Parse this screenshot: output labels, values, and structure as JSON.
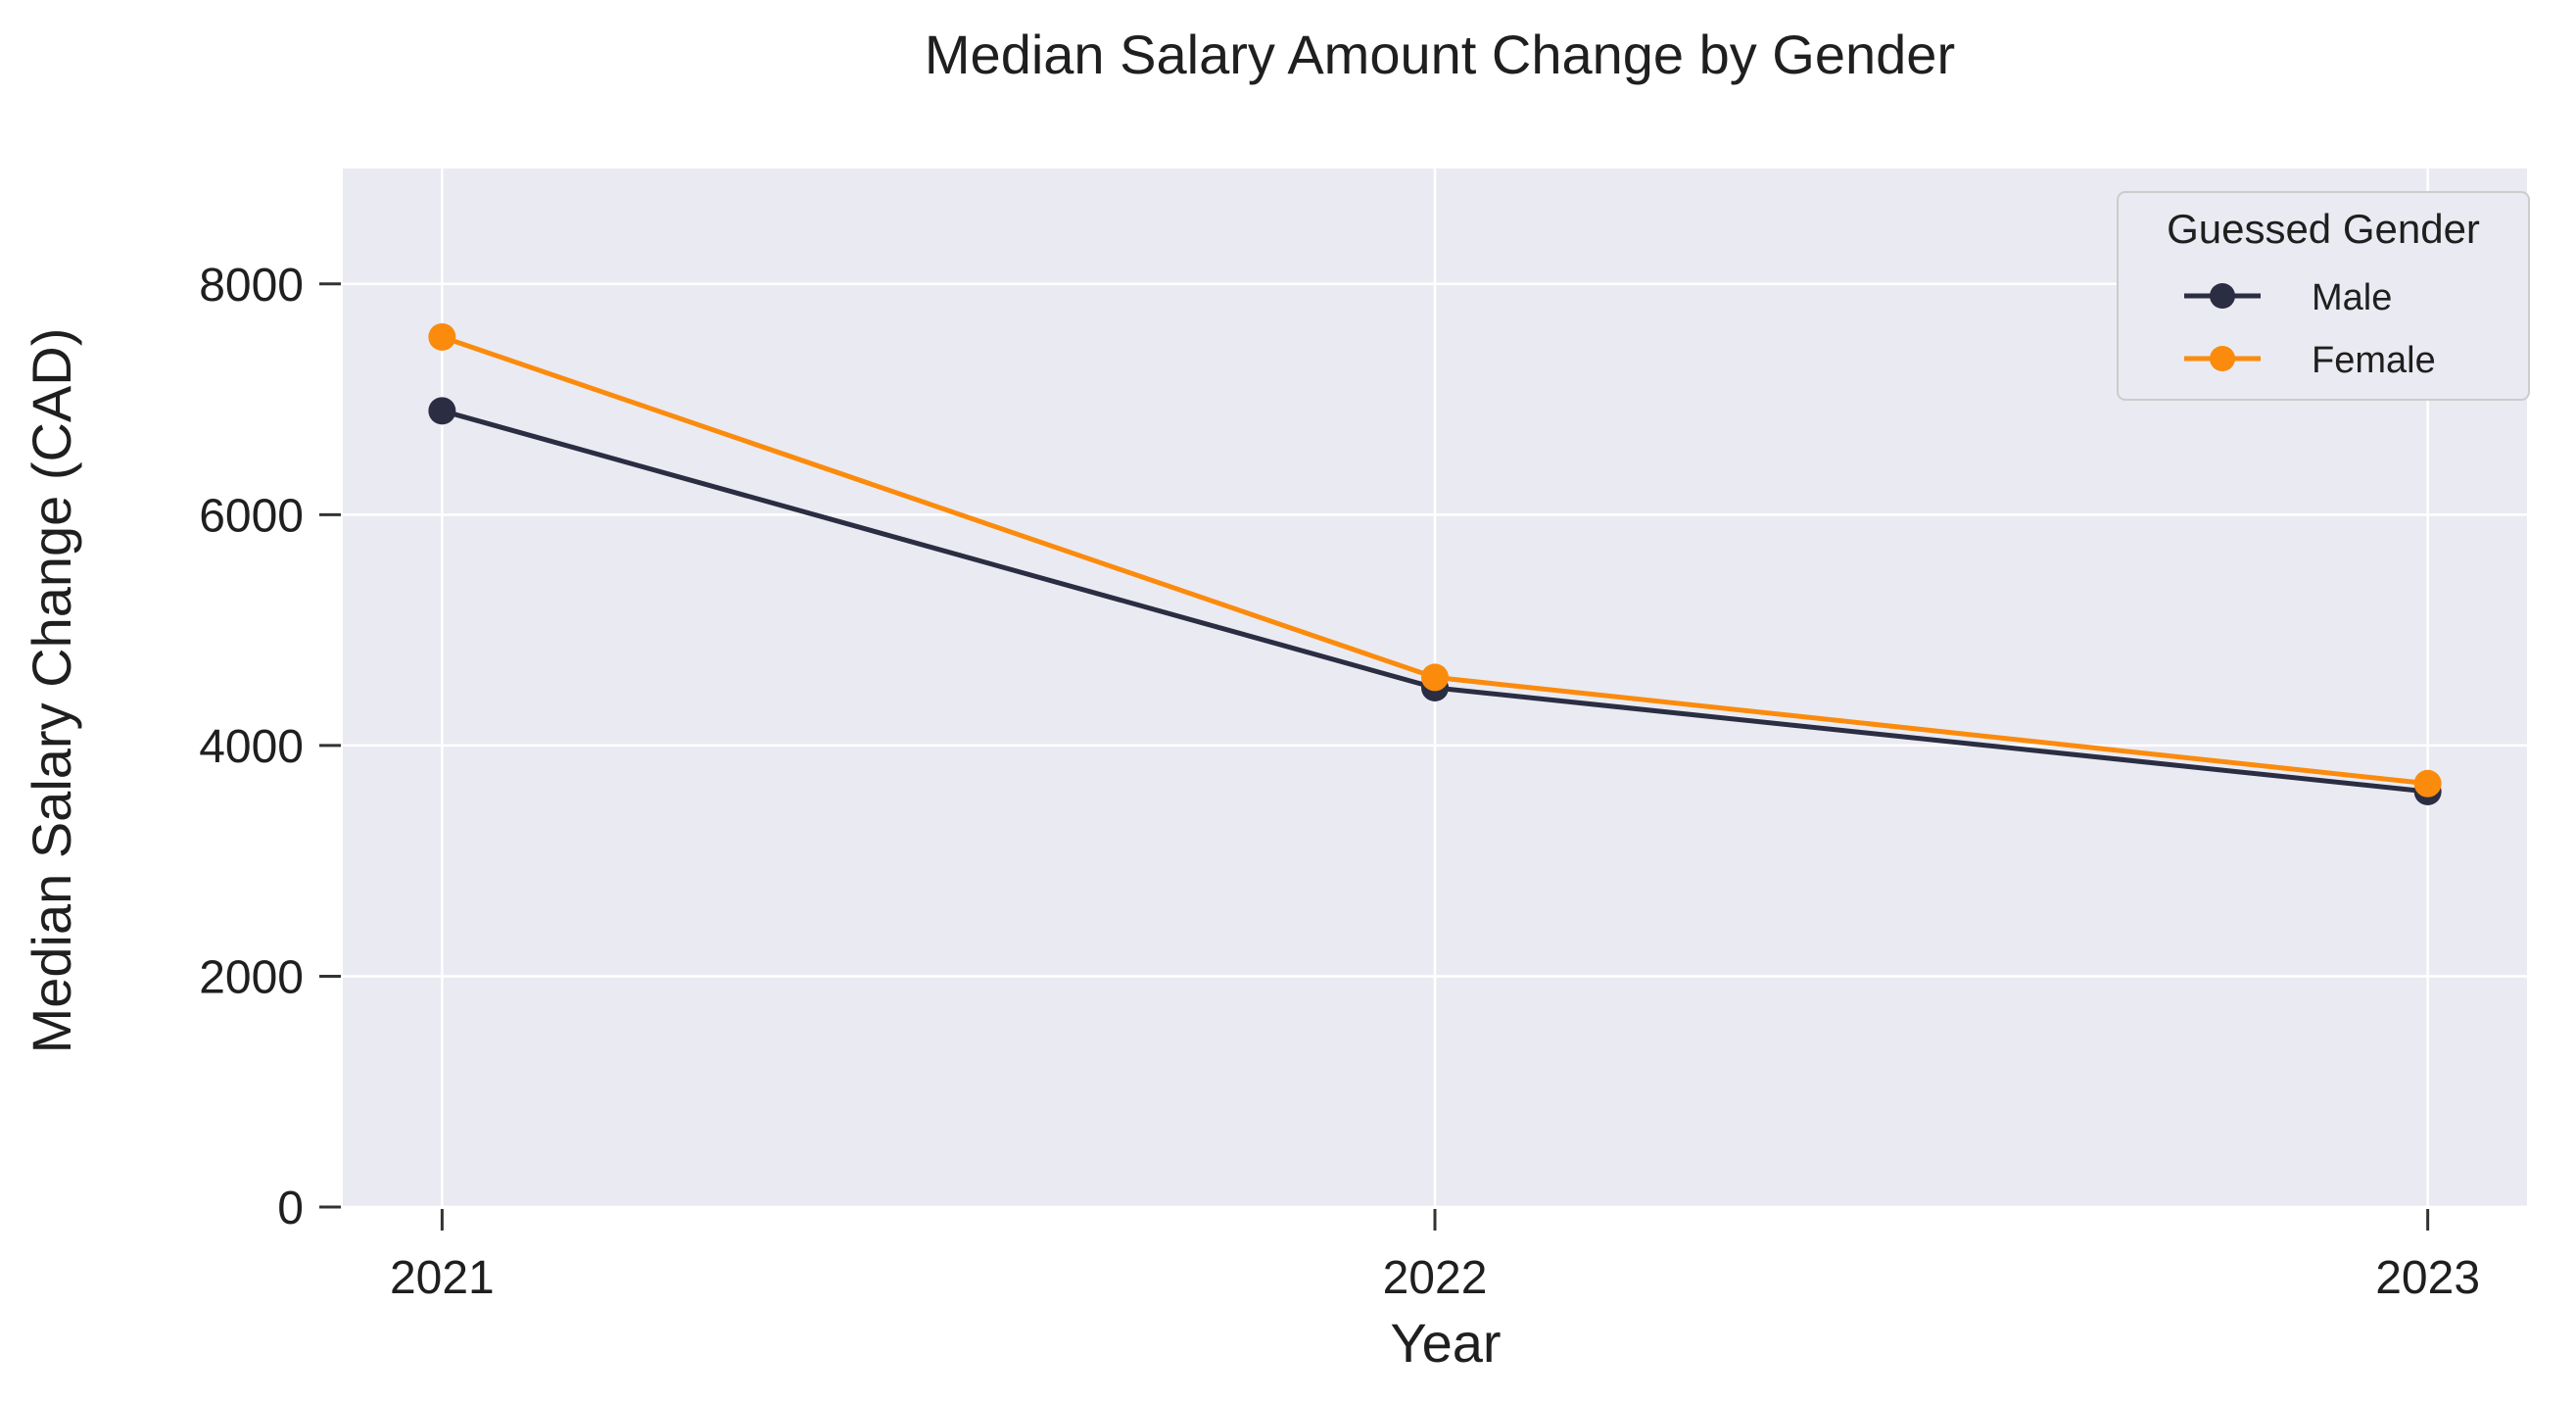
{
  "chart_data": {
    "type": "line",
    "title": "Median Salary Amount Change by Gender",
    "xlabel": "Year",
    "ylabel": "Median Salary Change (CAD)",
    "x": [
      2021,
      2022,
      2023
    ],
    "x_tick_labels": [
      "2021",
      "2022",
      "2023"
    ],
    "y_ticks": [
      0,
      2000,
      4000,
      6000,
      8000
    ],
    "y_tick_labels": [
      "0",
      "2000",
      "4000",
      "6000",
      "8000"
    ],
    "ylim": [
      0,
      9000
    ],
    "xlim": [
      2020.9,
      2023.1
    ],
    "grid": true,
    "background_color": "#eaeaf2",
    "legend": {
      "title": "Guessed Gender",
      "placement": "top-right"
    },
    "series": [
      {
        "name": "Male",
        "color": "#2b2d42",
        "values": [
          6900,
          4500,
          3600
        ]
      },
      {
        "name": "Female",
        "color": "#fb8b0d",
        "values": [
          7540,
          4590,
          3670
        ]
      }
    ]
  }
}
